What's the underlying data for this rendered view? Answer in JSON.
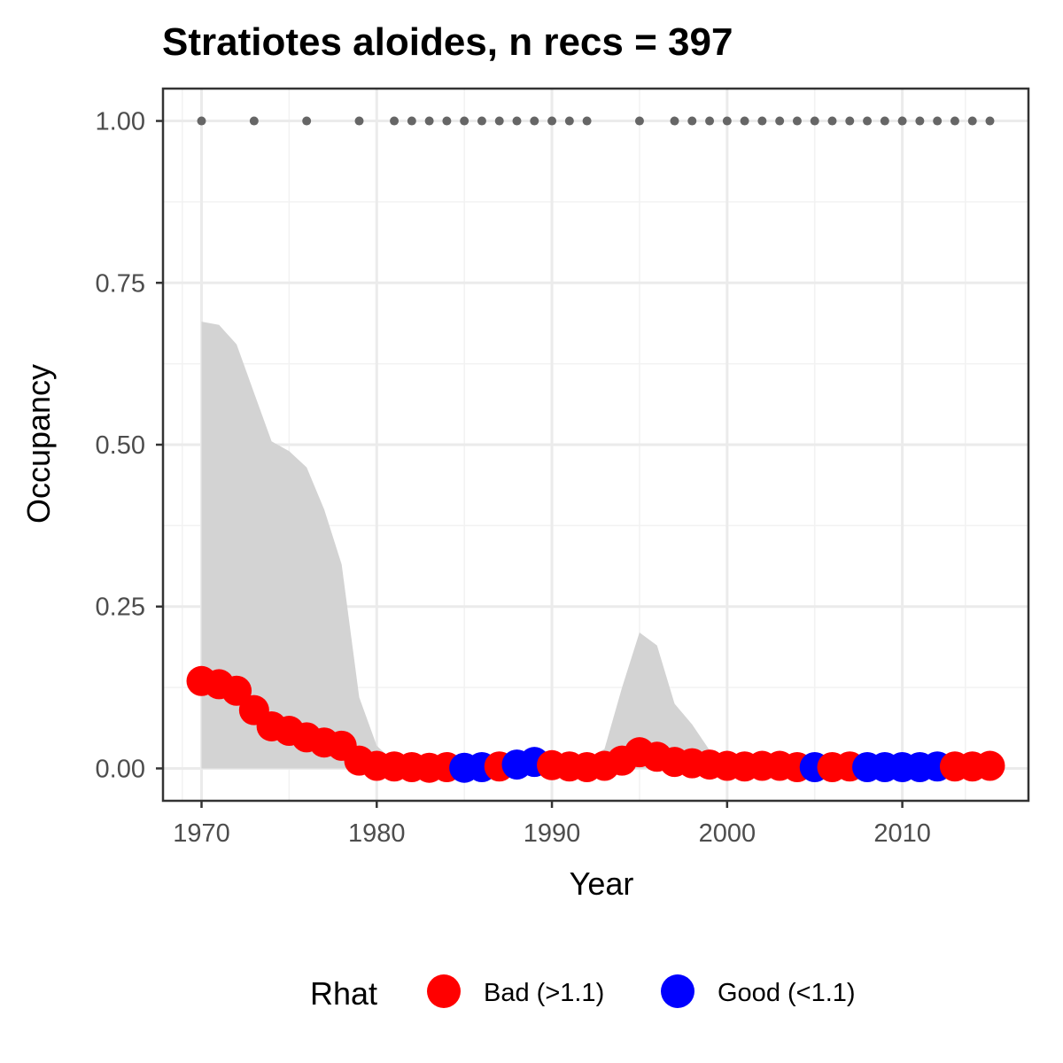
{
  "chart_data": {
    "type": "line",
    "title": "Stratiotes aloides, n recs = 397",
    "xlabel": "Year",
    "ylabel": "Occupancy",
    "xlim": [
      1967.8,
      2017.2
    ],
    "ylim": [
      -0.05,
      1.05
    ],
    "x_ticks": [
      1970,
      1980,
      1990,
      2000,
      2010
    ],
    "x_tick_labels": [
      "1970",
      "1980",
      "1990",
      "2000",
      "2010"
    ],
    "y_ticks": [
      0,
      0.25,
      0.5,
      0.75,
      1.0
    ],
    "y_tick_labels": [
      "0.00",
      "0.25",
      "0.50",
      "0.75",
      "1.00"
    ],
    "grid": true,
    "legend": {
      "title": "Rhat",
      "position": "bottom",
      "entries": [
        {
          "label": "Bad (>1.1)",
          "color": "#ff0000"
        },
        {
          "label": "Good (<1.1)",
          "color": "#0000ff"
        }
      ]
    },
    "colors": {
      "bad": "#ff0000",
      "good": "#0000ff",
      "ribbon": "#d3d3d3",
      "records": "#666666"
    },
    "records_at_1": [
      1970,
      1973,
      1976,
      1979,
      1981,
      1982,
      1983,
      1984,
      1985,
      1986,
      1987,
      1988,
      1989,
      1990,
      1991,
      1992,
      1995,
      1997,
      1998,
      1999,
      2000,
      2001,
      2002,
      2003,
      2004,
      2005,
      2006,
      2007,
      2008,
      2009,
      2010,
      2011,
      2012,
      2013,
      2014,
      2015
    ],
    "ribbon": {
      "x": [
        1970,
        1971,
        1972,
        1973,
        1974,
        1975,
        1976,
        1977,
        1978,
        1979,
        1980,
        1981,
        1982,
        1983,
        1984,
        1985,
        1986,
        1987,
        1988,
        1989,
        1990,
        1991,
        1992,
        1993,
        1994,
        1995,
        1996,
        1997,
        1998,
        1999,
        2000,
        2001,
        2002,
        2003,
        2004,
        2005,
        2006,
        2007,
        2008,
        2009,
        2010,
        2011,
        2012,
        2013,
        2014,
        2015
      ],
      "lower": [
        0,
        0,
        0,
        0,
        0,
        0,
        0,
        0,
        0,
        0,
        0,
        0,
        0,
        0,
        0,
        0,
        0,
        0,
        0,
        0,
        0,
        0,
        0,
        0,
        0,
        0,
        0,
        0,
        0,
        0,
        0,
        0,
        0,
        0,
        0,
        0,
        0,
        0,
        0,
        0,
        0,
        0,
        0,
        0,
        0,
        0
      ],
      "upper": [
        0.69,
        0.685,
        0.655,
        0.58,
        0.505,
        0.49,
        0.465,
        0.4,
        0.315,
        0.11,
        0.035,
        0.01,
        0.008,
        0.008,
        0.01,
        0.012,
        0.012,
        0.014,
        0.02,
        0.022,
        0.015,
        0.012,
        0.015,
        0.03,
        0.125,
        0.21,
        0.19,
        0.1,
        0.068,
        0.028,
        0.012,
        0.01,
        0.01,
        0.01,
        0.008,
        0.008,
        0.008,
        0.008,
        0.008,
        0.008,
        0.008,
        0.008,
        0.008,
        0.008,
        0.008,
        0.008
      ]
    },
    "series": [
      {
        "x": [
          1970,
          1971,
          1972,
          1973,
          1974,
          1975,
          1976,
          1977,
          1978,
          1979,
          1980,
          1981,
          1982,
          1983,
          1984,
          1985,
          1986,
          1987,
          1988,
          1989,
          1990,
          1991,
          1992,
          1993,
          1994,
          1995,
          1996,
          1997,
          1998,
          1999,
          2000,
          2001,
          2002,
          2003,
          2004,
          2005,
          2006,
          2007,
          2008,
          2009,
          2010,
          2011,
          2012,
          2013,
          2014,
          2015
        ],
        "y": [
          0.135,
          0.13,
          0.12,
          0.09,
          0.065,
          0.058,
          0.048,
          0.04,
          0.035,
          0.012,
          0.004,
          0.003,
          0.002,
          0.001,
          0.002,
          0.001,
          0.002,
          0.003,
          0.006,
          0.01,
          0.005,
          0.003,
          0.002,
          0.004,
          0.012,
          0.025,
          0.018,
          0.01,
          0.008,
          0.006,
          0.004,
          0.003,
          0.004,
          0.004,
          0.002,
          0.002,
          0.002,
          0.003,
          0.002,
          0.002,
          0.002,
          0.002,
          0.003,
          0.003,
          0.003,
          0.004
        ],
        "rhat": [
          "Bad (>1.1)",
          "Bad (>1.1)",
          "Bad (>1.1)",
          "Bad (>1.1)",
          "Bad (>1.1)",
          "Bad (>1.1)",
          "Bad (>1.1)",
          "Bad (>1.1)",
          "Bad (>1.1)",
          "Bad (>1.1)",
          "Bad (>1.1)",
          "Bad (>1.1)",
          "Bad (>1.1)",
          "Bad (>1.1)",
          "Bad (>1.1)",
          "Good (<1.1)",
          "Good (<1.1)",
          "Bad (>1.1)",
          "Good (<1.1)",
          "Good (<1.1)",
          "Bad (>1.1)",
          "Bad (>1.1)",
          "Bad (>1.1)",
          "Bad (>1.1)",
          "Bad (>1.1)",
          "Bad (>1.1)",
          "Bad (>1.1)",
          "Bad (>1.1)",
          "Bad (>1.1)",
          "Bad (>1.1)",
          "Bad (>1.1)",
          "Bad (>1.1)",
          "Bad (>1.1)",
          "Bad (>1.1)",
          "Bad (>1.1)",
          "Good (<1.1)",
          "Bad (>1.1)",
          "Bad (>1.1)",
          "Good (<1.1)",
          "Good (<1.1)",
          "Good (<1.1)",
          "Good (<1.1)",
          "Good (<1.1)",
          "Bad (>1.1)",
          "Bad (>1.1)",
          "Bad (>1.1)"
        ]
      }
    ]
  }
}
